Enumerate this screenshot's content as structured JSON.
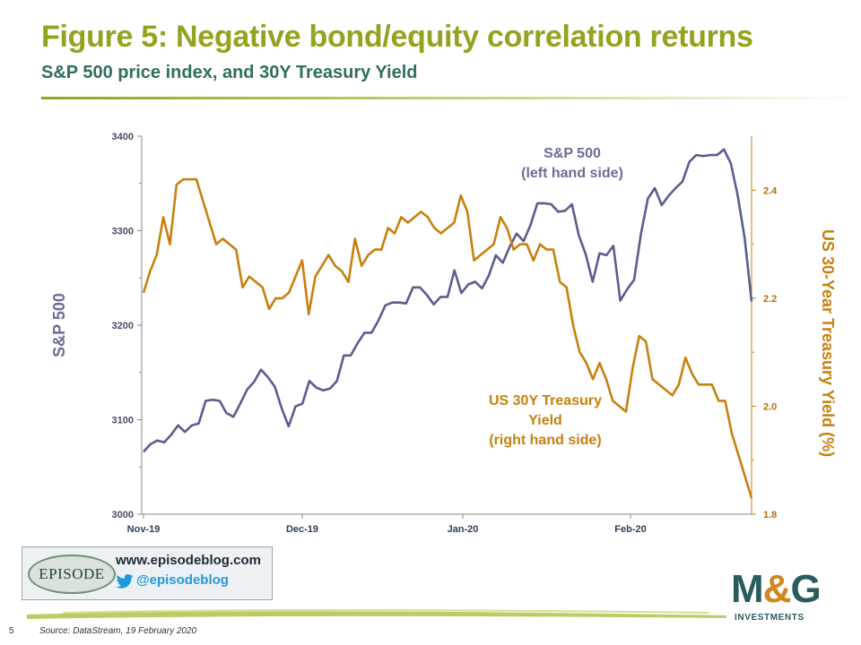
{
  "header": {
    "title": "Figure 5: Negative bond/equity correlation returns",
    "subtitle": "S&P 500 price index, and 30Y Treasury Yield"
  },
  "chart_data": {
    "type": "line",
    "x_labels": [
      "Nov-19",
      "Dec-19",
      "Jan-20",
      "Feb-20"
    ],
    "left_axis": {
      "label": "S&P 500",
      "range": [
        3000,
        3400
      ],
      "ticks": [
        "3000",
        "3100",
        "3200",
        "3300",
        "3400"
      ]
    },
    "right_axis": {
      "label": "US 30-Year Treasury Yield  (%)",
      "range": [
        1.8,
        2.5
      ],
      "ticks": [
        "1.8",
        "2.0",
        "2.2",
        "2.4"
      ]
    },
    "grid": false,
    "series": [
      {
        "name": "S&P 500",
        "axis": "left",
        "annotation": [
          "S&P 500",
          "(left hand side)"
        ],
        "values": [
          3066,
          3074,
          3078,
          3076,
          3084,
          3094,
          3087,
          3094,
          3096,
          3120,
          3121,
          3120,
          3107,
          3103,
          3117,
          3132,
          3140,
          3153,
          3145,
          3135,
          3112,
          3093,
          3114,
          3117,
          3141,
          3134,
          3131,
          3133,
          3141,
          3168,
          3168,
          3181,
          3192,
          3192,
          3205,
          3221,
          3224,
          3224,
          3223,
          3240,
          3240,
          3232,
          3222,
          3230,
          3230,
          3258,
          3234,
          3243,
          3246,
          3239,
          3253,
          3274,
          3266,
          3283,
          3297,
          3289,
          3306,
          3329,
          3329,
          3328,
          3320,
          3321,
          3328,
          3295,
          3275,
          3246,
          3276,
          3274,
          3284,
          3226,
          3238,
          3248,
          3297,
          3334,
          3345,
          3327,
          3337,
          3345,
          3352,
          3373,
          3380,
          3379,
          3380,
          3380,
          3386,
          3371,
          3337,
          3292,
          3225
        ]
      },
      {
        "name": "US 30Y Treasury Yield",
        "axis": "right",
        "annotation": [
          "US 30Y Treasury",
          "Yield",
          "(right hand side)"
        ],
        "values": [
          2.21,
          2.25,
          2.28,
          2.35,
          2.3,
          2.41,
          2.42,
          2.42,
          2.42,
          2.38,
          2.34,
          2.3,
          2.31,
          2.3,
          2.29,
          2.22,
          2.24,
          2.23,
          2.22,
          2.18,
          2.2,
          2.2,
          2.21,
          2.24,
          2.27,
          2.17,
          2.24,
          2.26,
          2.28,
          2.26,
          2.25,
          2.23,
          2.31,
          2.26,
          2.28,
          2.29,
          2.29,
          2.33,
          2.32,
          2.35,
          2.34,
          2.35,
          2.36,
          2.35,
          2.33,
          2.32,
          2.33,
          2.34,
          2.39,
          2.36,
          2.27,
          2.28,
          2.29,
          2.3,
          2.35,
          2.33,
          2.29,
          2.3,
          2.3,
          2.27,
          2.3,
          2.29,
          2.29,
          2.23,
          2.22,
          2.15,
          2.1,
          2.08,
          2.05,
          2.08,
          2.05,
          2.01,
          2.0,
          1.99,
          2.07,
          2.13,
          2.12,
          2.05,
          2.04,
          2.03,
          2.02,
          2.04,
          2.09,
          2.06,
          2.04,
          2.04,
          2.04,
          2.01,
          2.01,
          1.95,
          1.91,
          1.87,
          1.83
        ]
      }
    ]
  },
  "footer": {
    "site": "www.episodeblog.com",
    "handle": "@episodeblog",
    "badge": "EPISODE",
    "brand_mark": "M&G",
    "brand_m": "M",
    "brand_amp": "&",
    "brand_g": "G",
    "brand_sub": "INVESTMENTS",
    "page": "5",
    "source": "Source: DataStream, 19 February 2020"
  },
  "colors": {
    "title": "#94a31f",
    "subtitle": "#2e6f5f",
    "spx": "#5c5d8e",
    "yield": "#c8800f",
    "brand": "#2a5c5d",
    "twitter": "#1f9ad8"
  }
}
